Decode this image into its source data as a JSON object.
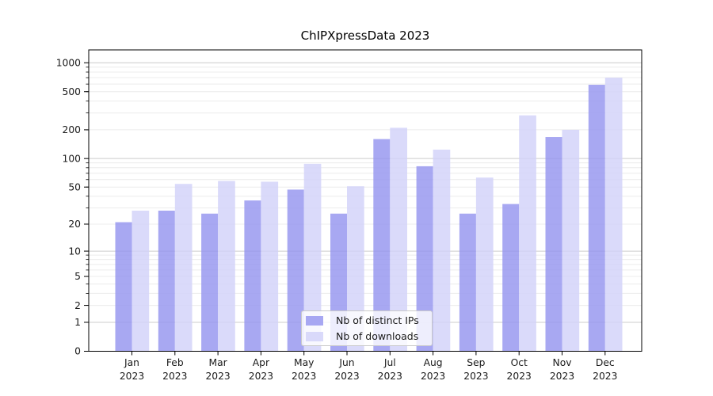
{
  "title": "ChIPXpressData 2023",
  "chart_data": {
    "type": "bar",
    "title": "ChIPXpressData 2023",
    "categories": [
      "Jan",
      "Feb",
      "Mar",
      "Apr",
      "May",
      "Jun",
      "Jul",
      "Aug",
      "Sep",
      "Oct",
      "Nov",
      "Dec"
    ],
    "x_tick_second_line": "2023",
    "series": [
      {
        "name": "Nb of distinct IPs",
        "color": "#9595ef",
        "values": [
          21,
          28,
          26,
          36,
          47,
          26,
          160,
          83,
          26,
          33,
          168,
          590
        ]
      },
      {
        "name": "Nb of downloads",
        "color": "#d2d2f9",
        "values": [
          28,
          54,
          58,
          57,
          88,
          51,
          210,
          124,
          63,
          283,
          200,
          700
        ]
      }
    ],
    "y_scale": "log1p",
    "y_ticks": [
      0,
      1,
      2,
      5,
      10,
      20,
      50,
      100,
      200,
      500,
      1000
    ],
    "ylim": [
      0,
      1350
    ],
    "xlabel": "",
    "ylabel": "",
    "grid": true,
    "legend_position": "lower center",
    "colors": {
      "bar_opacity": "0.82",
      "major_grid": "#cccccc",
      "minor_grid": "#ececec",
      "axis": "#000000",
      "text": "#1a1a1a"
    }
  }
}
